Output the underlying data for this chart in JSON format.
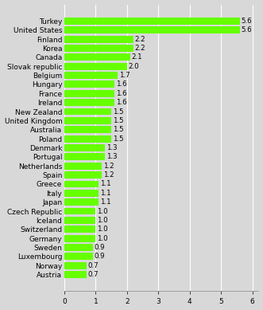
{
  "countries": [
    "Turkey",
    "United States",
    "Finland",
    "Korea",
    "Canada",
    "Slovak republic",
    "Belgium",
    "Hungary",
    "France",
    "Ireland",
    "New Zealand",
    "United Kingdom",
    "Australia",
    "Poland",
    "Denmark",
    "Portugal",
    "Netherlands",
    "Spain",
    "Greece",
    "Italy",
    "Japan",
    "Czech Republic",
    "Iceland",
    "Switzerland",
    "Germany",
    "Sweden",
    "Luxembourg",
    "Norway",
    "Austria"
  ],
  "values": [
    5.6,
    5.6,
    2.2,
    2.2,
    2.1,
    2.0,
    1.7,
    1.6,
    1.6,
    1.6,
    1.5,
    1.5,
    1.5,
    1.5,
    1.3,
    1.3,
    1.2,
    1.2,
    1.1,
    1.1,
    1.1,
    1.0,
    1.0,
    1.0,
    1.0,
    0.9,
    0.9,
    0.7,
    0.7
  ],
  "bar_color": "#66FF00",
  "background_color": "#D8D8D8",
  "fig_background": "#D8D8D8",
  "grid_color": "#FFFFFF",
  "text_color": "#000000",
  "xlim": [
    0,
    6.2
  ],
  "xticks": [
    0,
    1,
    2,
    3,
    4,
    5,
    6
  ],
  "label_fontsize": 6.5,
  "value_fontsize": 6.2,
  "tick_fontsize": 6.5,
  "bar_height": 0.78
}
